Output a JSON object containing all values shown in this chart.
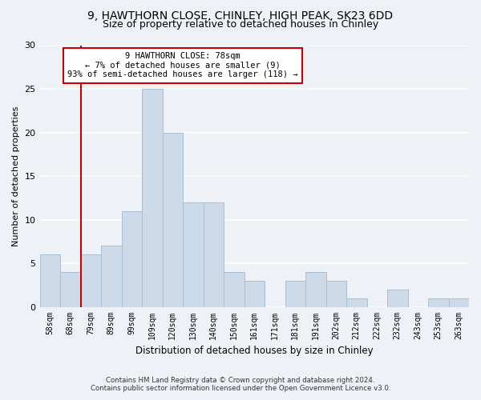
{
  "title_line1": "9, HAWTHORN CLOSE, CHINLEY, HIGH PEAK, SK23 6DD",
  "title_line2": "Size of property relative to detached houses in Chinley",
  "xlabel": "Distribution of detached houses by size in Chinley",
  "ylabel": "Number of detached properties",
  "bar_labels": [
    "58sqm",
    "68sqm",
    "79sqm",
    "89sqm",
    "99sqm",
    "109sqm",
    "120sqm",
    "130sqm",
    "140sqm",
    "150sqm",
    "161sqm",
    "171sqm",
    "181sqm",
    "191sqm",
    "202sqm",
    "212sqm",
    "222sqm",
    "232sqm",
    "243sqm",
    "253sqm",
    "263sqm"
  ],
  "bar_values": [
    6,
    4,
    6,
    7,
    11,
    25,
    20,
    12,
    12,
    4,
    3,
    0,
    3,
    4,
    3,
    1,
    0,
    2,
    0,
    1,
    1
  ],
  "bar_color": "#ccdaea",
  "bar_edge_color": "#a8bfd4",
  "annotation_text": "9 HAWTHORN CLOSE: 78sqm\n← 7% of detached houses are smaller (9)\n93% of semi-detached houses are larger (118) →",
  "annotation_box_color": "#ffffff",
  "annotation_box_edge": "#cc0000",
  "vline_color": "#cc0000",
  "vline_pos": 1.5,
  "ylim": [
    0,
    30
  ],
  "yticks": [
    0,
    5,
    10,
    15,
    20,
    25,
    30
  ],
  "footer_line1": "Contains HM Land Registry data © Crown copyright and database right 2024.",
  "footer_line2": "Contains public sector information licensed under the Open Government Licence v3.0.",
  "background_color": "#eef2f7",
  "grid_color": "#ffffff",
  "title_fontsize": 10,
  "subtitle_fontsize": 9
}
